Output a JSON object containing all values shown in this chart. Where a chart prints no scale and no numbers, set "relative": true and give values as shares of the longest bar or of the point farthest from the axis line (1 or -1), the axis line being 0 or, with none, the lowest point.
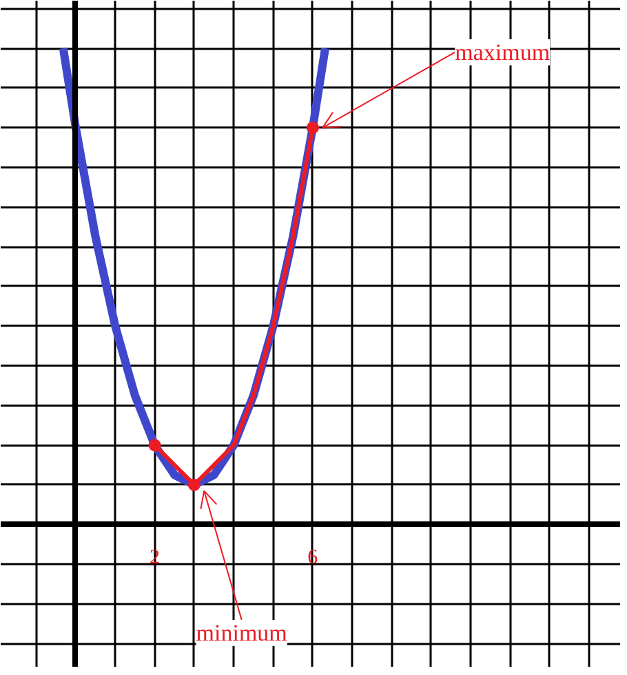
{
  "chart_data": {
    "type": "line",
    "relative": true,
    "grid": true,
    "marker": "none",
    "xlim": [
      -1.9,
      13.8
    ],
    "xticks": [
      {
        "value": -1,
        "label": null
      },
      {
        "value": 0,
        "label": null
      },
      {
        "value": 1,
        "label": null
      },
      2,
      {
        "value": 3,
        "label": null
      },
      {
        "value": 4,
        "label": null
      },
      {
        "value": 5,
        "label": null
      },
      6,
      {
        "value": 7,
        "label": null
      },
      {
        "value": 8,
        "label": null
      },
      {
        "value": 9,
        "label": null
      },
      {
        "value": 10,
        "label": null
      },
      {
        "value": 11,
        "label": null
      },
      {
        "value": 12,
        "label": null
      },
      {
        "value": 13,
        "label": null
      }
    ],
    "series": [
      {
        "color": "#3f48cc",
        "x": [
          -0.317,
          0,
          0.5,
          1,
          1.5,
          2,
          2.5,
          3,
          3.5,
          4,
          4.5,
          5,
          5.5,
          6,
          6.317
        ],
        "values": [
          1,
          0.8333,
          0.6042,
          0.4167,
          0.2708,
          0.1667,
          0.1042,
          0.0833,
          0.1042,
          0.1667,
          0.2708,
          0.4167,
          0.6042,
          0.8333,
          1
        ]
      },
      {
        "color": "#ed1c24",
        "x": [
          2,
          3,
          4,
          4.5,
          5,
          5.5,
          6
        ],
        "values": [
          0.1667,
          0.0833,
          0.1667,
          0.2708,
          0.4167,
          0.6042,
          0.8333
        ]
      },
      {
        "type": "scatter",
        "marker": "circle",
        "color": "#ed1c24",
        "x": [
          2,
          3,
          6
        ],
        "values": [
          0.1667,
          0.0833,
          0.8333
        ]
      }
    ],
    "annotations": [
      {
        "text": "maximum",
        "x": 6,
        "y": 0.8333
      },
      {
        "text": "minimum",
        "x": 3,
        "y": 0.0833
      }
    ]
  }
}
